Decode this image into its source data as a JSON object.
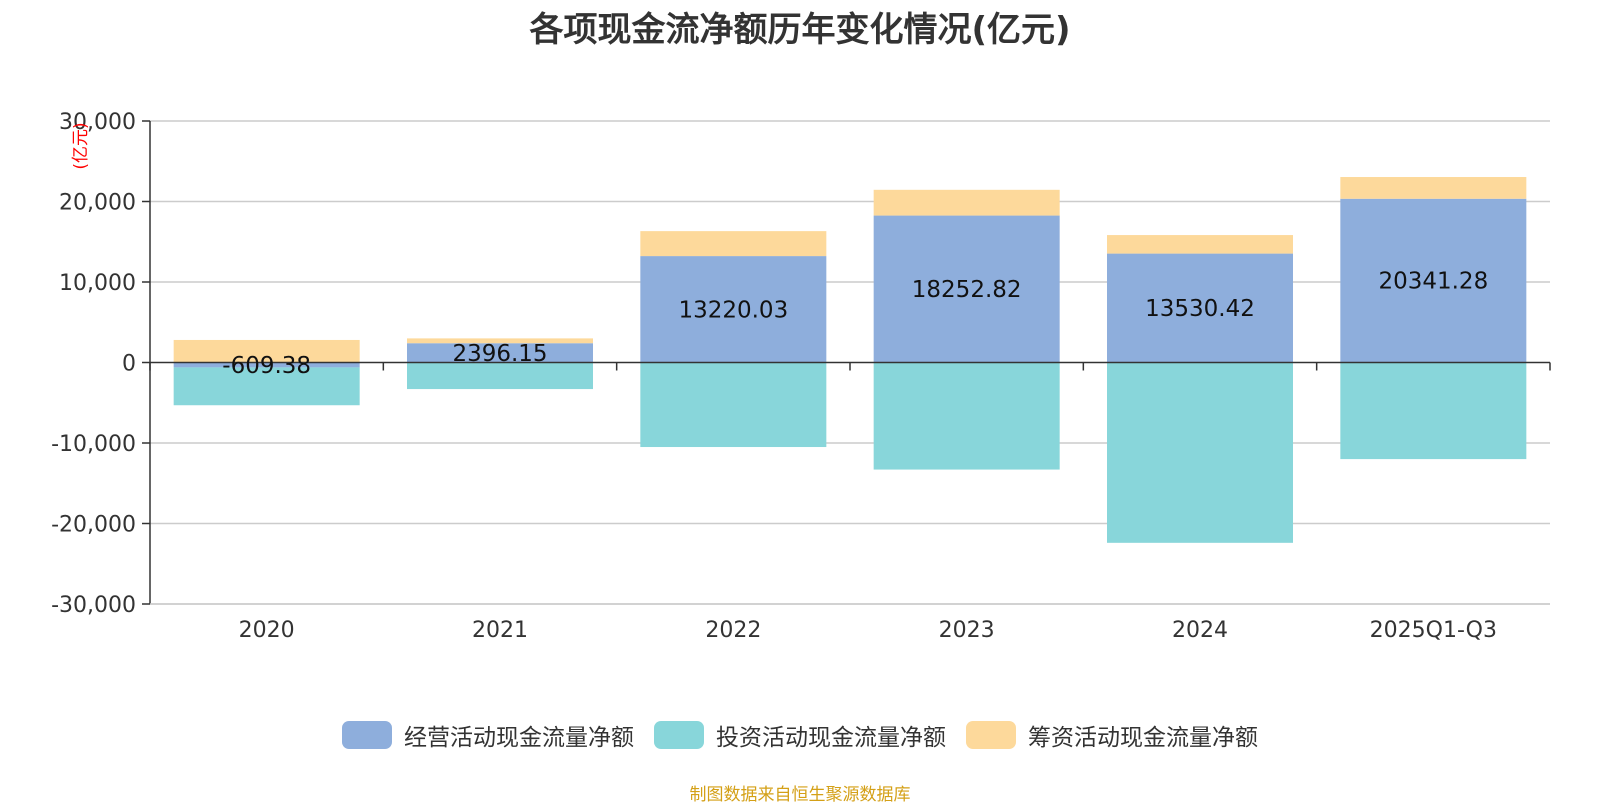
{
  "chart_data": {
    "type": "bar",
    "stacked": true,
    "title": "各项现金流净额历年变化情况(亿元)",
    "y_unit_label": "(亿元)",
    "categories": [
      "2020",
      "2021",
      "2022",
      "2023",
      "2024",
      "2025Q1-Q3"
    ],
    "ylim": [
      -30000,
      30000
    ],
    "yticks": [
      30000,
      20000,
      10000,
      0,
      -10000,
      -20000,
      -30000
    ],
    "ytick_labels": [
      "30,000",
      "20,000",
      "10,000",
      "0",
      "-10,000",
      "-20,000",
      "-30,000"
    ],
    "grid": true,
    "legend_position": "bottom",
    "series": [
      {
        "name": "经营活动现金流量净额",
        "color": "#8eaedc",
        "values": [
          -609.38,
          2396.15,
          13220.03,
          18252.82,
          13530.42,
          20341.28
        ],
        "data_labels": [
          "-609.38",
          "2396.15",
          "13220.03",
          "18252.82",
          "13530.42",
          "20341.28"
        ]
      },
      {
        "name": "投资活动现金流量净额",
        "color": "#88d6da",
        "values": [
          -4700,
          -3300,
          -10500,
          -13300,
          -22400,
          -12000
        ]
      },
      {
        "name": "筹资活动现金流量净额",
        "color": "#fdd99b",
        "values": [
          2800,
          600,
          3100,
          3200,
          2300,
          2700
        ]
      }
    ]
  },
  "source_note": "制图数据来自恒生聚源数据库"
}
